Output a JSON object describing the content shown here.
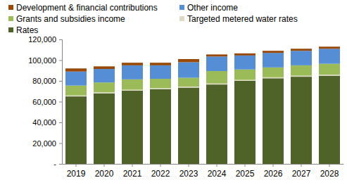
{
  "chart_data": {
    "type": "bar",
    "stacked": true,
    "grid": false,
    "legend": "top",
    "categories": [
      "2019",
      "2020",
      "2021",
      "2022",
      "2023",
      "2024",
      "2025",
      "2026",
      "2027",
      "2028"
    ],
    "series": [
      {
        "name": "Rates",
        "color": "#4f6228",
        "values": [
          65000,
          68000,
          70500,
          72000,
          73500,
          76500,
          80000,
          82500,
          84000,
          85000
        ]
      },
      {
        "name": "Targeted metered water rates",
        "color": "#ddd9c3",
        "values": [
          1000,
          1000,
          1000,
          1000,
          1000,
          1000,
          1000,
          1000,
          1000,
          1000
        ]
      },
      {
        "name": "Grants and subsidies income",
        "color": "#9bbb59",
        "values": [
          9500,
          9500,
          10000,
          9000,
          8500,
          12000,
          10000,
          9500,
          10000,
          10500
        ]
      },
      {
        "name": "Other income",
        "color": "#558ed5",
        "values": [
          13500,
          13000,
          13500,
          13000,
          15000,
          14000,
          13500,
          14000,
          14000,
          14500
        ]
      },
      {
        "name": "Development & financial contributions",
        "color": "#984807",
        "values": [
          3000,
          2500,
          2500,
          2500,
          3000,
          2000,
          2000,
          2000,
          2000,
          2000
        ]
      }
    ],
    "ylim": [
      0,
      120000
    ],
    "yticks": [
      {
        "value": 0,
        "label": "-"
      },
      {
        "value": 20000,
        "label": "20,000"
      },
      {
        "value": 40000,
        "label": "40,000"
      },
      {
        "value": 60000,
        "label": "60,000"
      },
      {
        "value": 80000,
        "label": "80,000"
      },
      {
        "value": 100000,
        "label": "100,000"
      },
      {
        "value": 120000,
        "label": "120,000"
      }
    ]
  }
}
